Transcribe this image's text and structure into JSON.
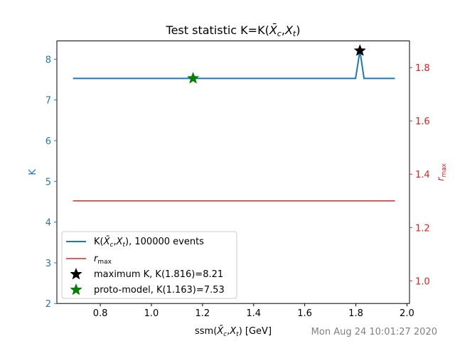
{
  "chart_data": {
    "type": "line",
    "title": "Test statistic K=K(X̄c,Xt)",
    "xlabel": "ssm(X̄c,Xt) [GeV]",
    "ylabel_left": "K",
    "ylabel_right": "r_max",
    "xlim": [
      0.63,
      2.01
    ],
    "ylim_left": [
      2.0,
      8.45
    ],
    "ylim_right": [
      0.915,
      1.9
    ],
    "x_ticks": [
      0.8,
      1.0,
      1.2,
      1.4,
      1.6,
      1.8,
      2.0
    ],
    "x_tick_labels": [
      "0.8",
      "1.0",
      "1.2",
      "1.4",
      "1.6",
      "1.8",
      "2.0"
    ],
    "y_left_ticks": [
      2,
      3,
      4,
      5,
      6,
      7,
      8
    ],
    "y_left_tick_labels": [
      "2",
      "3",
      "4",
      "5",
      "6",
      "7",
      "8"
    ],
    "y_right_ticks": [
      1.0,
      1.2,
      1.4,
      1.6,
      1.8
    ],
    "y_right_tick_labels": [
      "1.0",
      "1.2",
      "1.4",
      "1.6",
      "1.8"
    ],
    "grid": false,
    "legend_position": "lower-left",
    "series": [
      {
        "name": "K(X̄c,Xt), 100000 events",
        "axis": "left",
        "color": "#1f77b4",
        "x": [
          0.693,
          1.799,
          1.816,
          1.832,
          1.953
        ],
        "y": [
          7.53,
          7.53,
          8.21,
          7.53,
          7.53
        ]
      },
      {
        "name": "r_max",
        "axis": "right",
        "color": "#d62728",
        "x": [
          0.693,
          1.953
        ],
        "y": [
          1.3,
          1.3
        ]
      }
    ],
    "markers": [
      {
        "name": "maximum K, K(1.816)=8.21",
        "x": 1.816,
        "y": 8.21,
        "color": "#000000",
        "shape": "star"
      },
      {
        "name": "proto-model, K(1.163)=7.53",
        "x": 1.163,
        "y": 7.53,
        "color": "#008000",
        "shape": "star"
      }
    ]
  },
  "timestamp": "Mon Aug 24 10:01:27 2020"
}
